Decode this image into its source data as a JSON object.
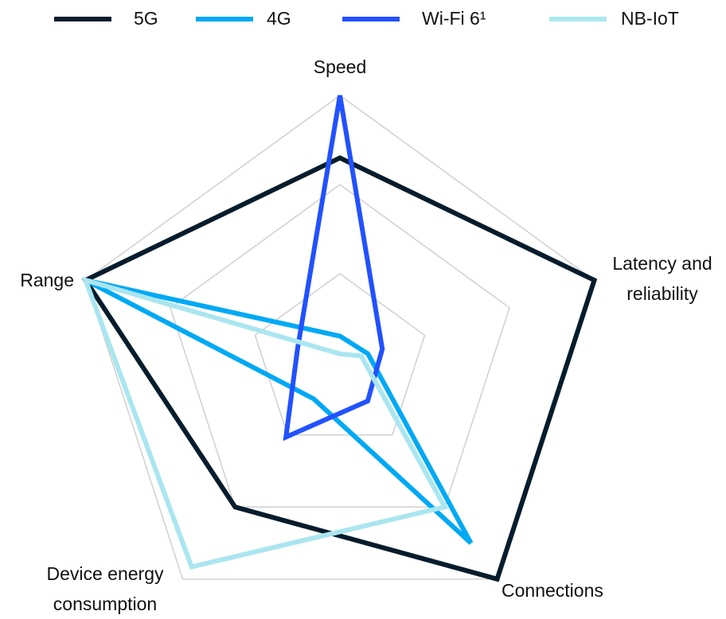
{
  "chart_data": {
    "type": "radar",
    "categories": [
      "Speed",
      "Latency and reliability",
      "Connections",
      "Device energy consumption",
      "Range"
    ],
    "series": [
      {
        "name": "5G",
        "color": "#051c2c",
        "values": [
          2.3,
          3,
          3,
          2,
          3
        ]
      },
      {
        "name": "4G",
        "color": "#00a9f4",
        "values": [
          0.3,
          0.33,
          2.5,
          0.5,
          3
        ]
      },
      {
        "name": "Wi-Fi 6¹",
        "color": "#2251ff",
        "values": [
          3,
          0.5,
          0.53,
          1.03,
          0.5
        ]
      },
      {
        "name": "NB-IoT",
        "color": "#aae6f0",
        "values": [
          0.1,
          0.25,
          2,
          2.83,
          3
        ]
      }
    ],
    "ylim": [
      0,
      3
    ],
    "yticks": [
      1,
      2,
      3
    ],
    "grid": true,
    "legend": "top"
  }
}
